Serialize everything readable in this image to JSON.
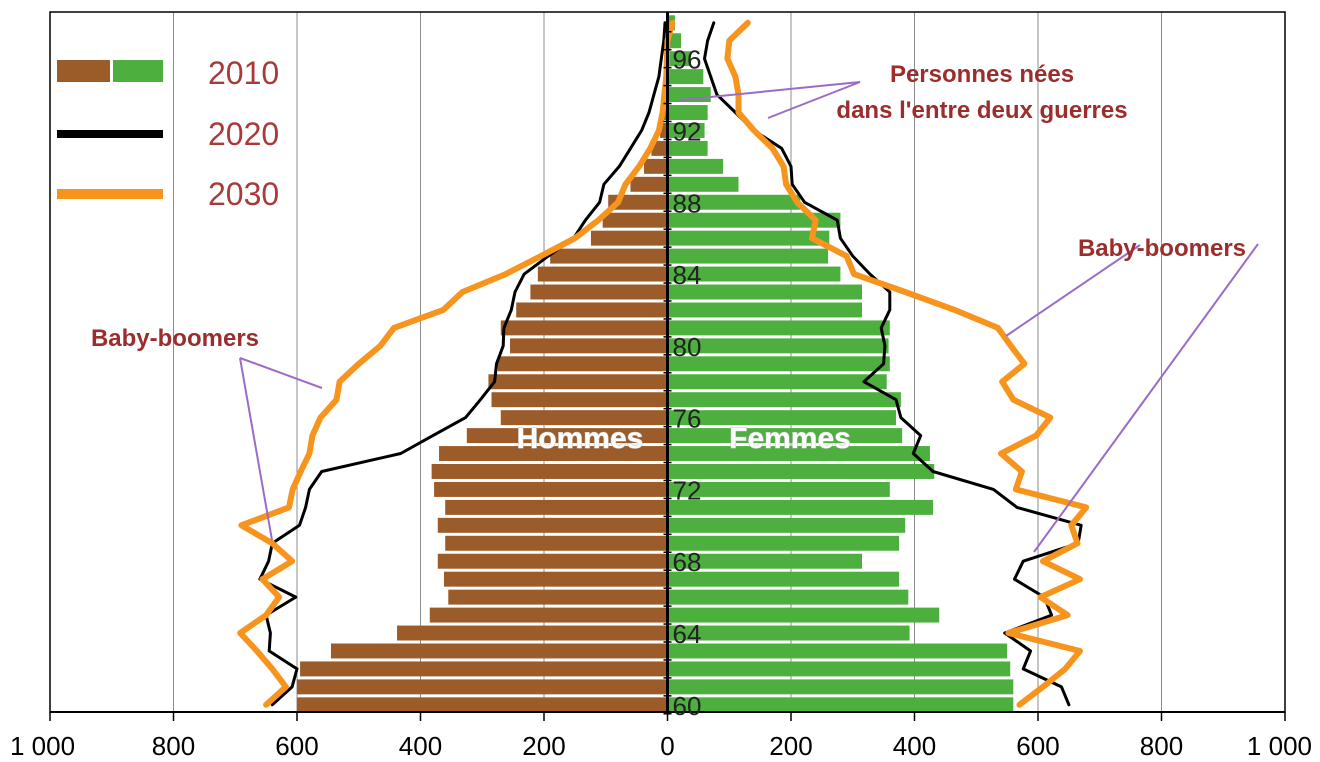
{
  "chart_data": {
    "type": "bar",
    "orientation": "horizontal-pyramid",
    "ages": [
      60,
      61,
      62,
      63,
      64,
      65,
      66,
      67,
      68,
      69,
      70,
      71,
      72,
      73,
      74,
      75,
      76,
      77,
      78,
      79,
      80,
      81,
      82,
      83,
      84,
      85,
      86,
      87,
      88,
      89,
      90,
      91,
      92,
      93,
      94,
      95,
      96,
      97,
      98
    ],
    "age_tick_labels": [
      "60",
      "64",
      "68",
      "72",
      "76",
      "80",
      "84",
      "88",
      "92",
      "96"
    ],
    "x_tick_labels": [
      "1 000",
      "800",
      "600",
      "400",
      "200",
      "0",
      "200",
      "400",
      "600",
      "800",
      "1 000"
    ],
    "xlim": [
      -1000,
      1000
    ],
    "ylim": [
      59.6,
      98.6
    ],
    "grid": "vertical",
    "legend": {
      "placement": "top-left",
      "entries": [
        {
          "label": "2010",
          "swatch": "bars",
          "colors": [
            "#9b5c2a",
            "#4caf3e"
          ]
        },
        {
          "label": "2020",
          "swatch": "line",
          "colors": [
            "#000000"
          ]
        },
        {
          "label": "2030",
          "swatch": "line",
          "colors": [
            "#f7941d"
          ]
        }
      ]
    },
    "sex_labels": {
      "men": "Hommes",
      "women": "Femmes"
    },
    "series": [
      {
        "name": "2010",
        "men": [
          600,
          600,
          595,
          545,
          438,
          385,
          355,
          362,
          372,
          360,
          372,
          360,
          378,
          382,
          370,
          325,
          270,
          285,
          290,
          275,
          255,
          270,
          245,
          222,
          210,
          190,
          124,
          105,
          96,
          60,
          38,
          26,
          12,
          8,
          6,
          4,
          3,
          2,
          1
        ],
        "women": [
          560,
          560,
          555,
          550,
          392,
          440,
          390,
          375,
          315,
          375,
          385,
          430,
          360,
          432,
          425,
          380,
          370,
          378,
          355,
          360,
          358,
          360,
          315,
          315,
          280,
          260,
          262,
          280,
          215,
          115,
          90,
          65,
          60,
          65,
          70,
          58,
          38,
          22,
          12
        ]
      },
      {
        "name": "2020",
        "men": [
          640,
          608,
          600,
          645,
          643,
          650,
          602,
          660,
          646,
          640,
          596,
          586,
          580,
          560,
          432,
          380,
          327,
          303,
          280,
          277,
          266,
          265,
          253,
          247,
          232,
          193,
          152,
          133,
          110,
          103,
          78,
          60,
          42,
          30,
          22,
          14,
          10,
          6,
          4
        ],
        "women": [
          650,
          638,
          576,
          588,
          546,
          622,
          610,
          562,
          576,
          665,
          670,
          566,
          528,
          430,
          398,
          410,
          378,
          370,
          318,
          350,
          352,
          346,
          360,
          360,
          328,
          300,
          280,
          275,
          222,
          202,
          200,
          185,
          140,
          110,
          80,
          70,
          60,
          65,
          75
        ]
      },
      {
        "name": "2030",
        "men": [
          650,
          618,
          640,
          665,
          692,
          650,
          629,
          656,
          608,
          640,
          690,
          613,
          607,
          594,
          580,
          575,
          562,
          536,
          531,
          500,
          465,
          443,
          363,
          332,
          262,
          205,
          150,
          112,
          80,
          68,
          46,
          28,
          14,
          8,
          5,
          2,
          1,
          0,
          -8
        ],
        "women": [
          570,
          608,
          644,
          668,
          552,
          648,
          604,
          668,
          608,
          664,
          654,
          678,
          564,
          574,
          540,
          597,
          620,
          560,
          542,
          578,
          556,
          535,
          465,
          385,
          302,
          290,
          234,
          240,
          210,
          192,
          188,
          170,
          140,
          115,
          115,
          110,
          97,
          100,
          130
        ]
      }
    ],
    "annotations": [
      {
        "text_lines": [
          "Personnes nées",
          "dans l'entre deux guerres"
        ]
      },
      {
        "text_lines": [
          "Baby-boomers"
        ]
      },
      {
        "text_lines": [
          "Baby-boomers"
        ]
      }
    ],
    "colors": {
      "men_bar": "#9b5c2a",
      "women_bar": "#4caf3e",
      "line_2020": "#000000",
      "line_2030": "#f7941d",
      "annotation_line": "#9b6bc6",
      "grid": "#8c8c8c"
    }
  }
}
